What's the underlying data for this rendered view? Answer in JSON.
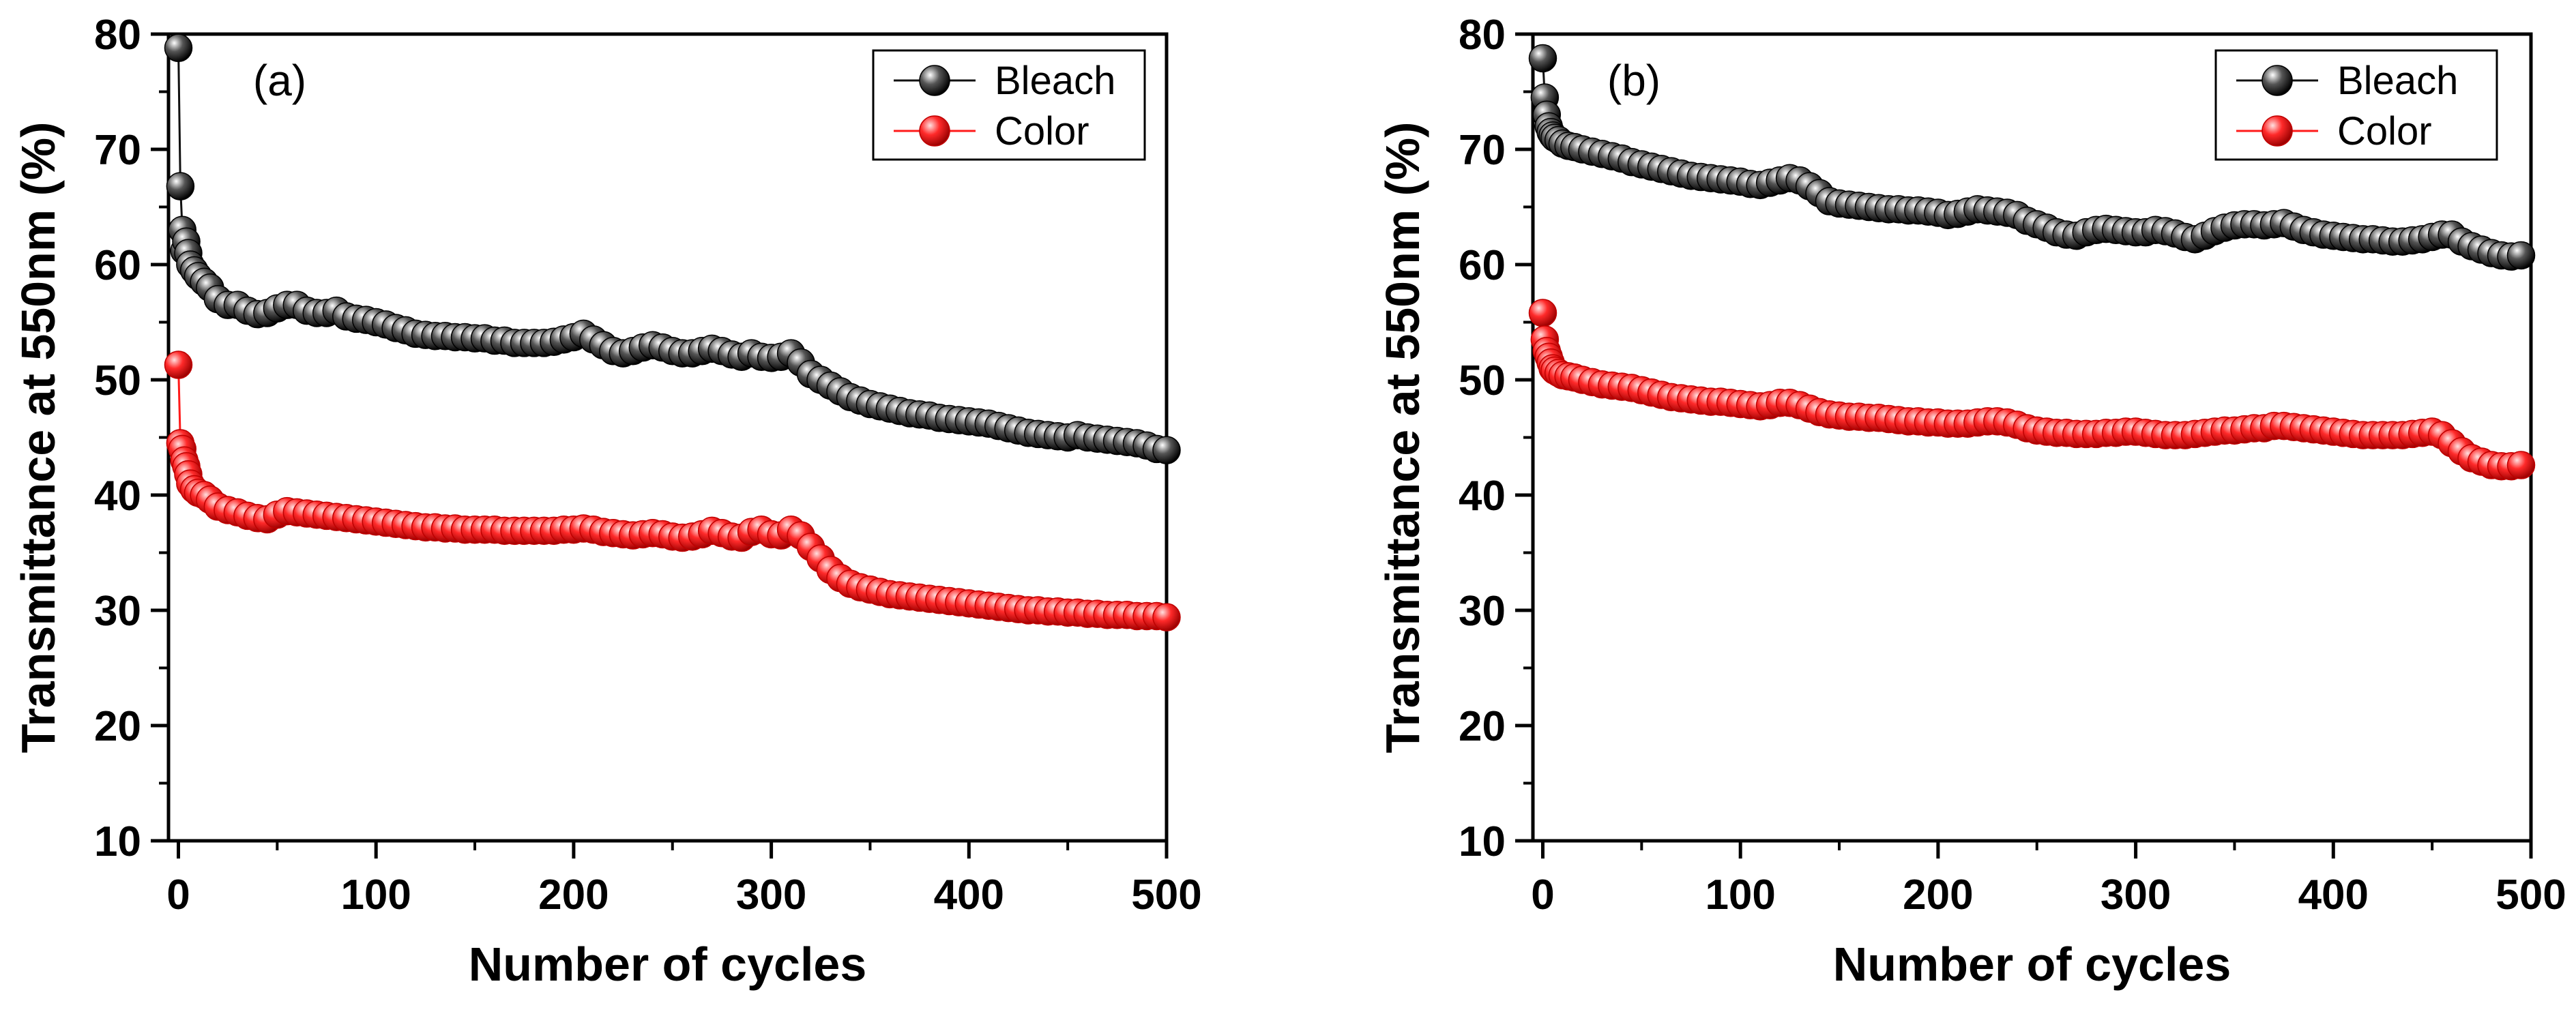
{
  "chart_data": [
    {
      "type": "scatter",
      "panel_label": "(a)",
      "xlabel": "Number of cycles",
      "ylabel": "Transmittance at 550nm (%)",
      "xlim": [
        -5,
        500
      ],
      "ylim": [
        10,
        80
      ],
      "xticks": [
        0,
        100,
        200,
        300,
        400,
        500
      ],
      "yticks": [
        10,
        20,
        30,
        40,
        50,
        60,
        70,
        80
      ],
      "legend_position": "top-right",
      "series": [
        {
          "name": "Bleach",
          "color": "#111111",
          "x": [
            0,
            1,
            2,
            3,
            4,
            5,
            6,
            8,
            10,
            13,
            16,
            20,
            25,
            30,
            35,
            40,
            45,
            50,
            55,
            60,
            65,
            70,
            75,
            80,
            85,
            90,
            95,
            100,
            105,
            110,
            115,
            120,
            125,
            130,
            135,
            140,
            145,
            150,
            155,
            160,
            165,
            170,
            175,
            180,
            185,
            190,
            195,
            200,
            205,
            210,
            215,
            220,
            225,
            230,
            235,
            240,
            245,
            250,
            255,
            260,
            265,
            270,
            275,
            280,
            285,
            290,
            295,
            300,
            305,
            310,
            315,
            320,
            325,
            330,
            335,
            340,
            345,
            350,
            355,
            360,
            365,
            370,
            375,
            380,
            385,
            390,
            395,
            400,
            405,
            410,
            415,
            420,
            425,
            430,
            435,
            440,
            445,
            450,
            455,
            460,
            465,
            470,
            475,
            480,
            485,
            490,
            495,
            500
          ],
          "y": [
            78.8,
            66.8,
            63.0,
            61.2,
            62.0,
            61.0,
            60.0,
            59.5,
            59.0,
            58.5,
            58.0,
            57.0,
            56.5,
            56.5,
            56.0,
            55.7,
            55.8,
            56.2,
            56.5,
            56.5,
            56.0,
            55.8,
            55.8,
            56.0,
            55.5,
            55.3,
            55.2,
            55.0,
            54.8,
            54.5,
            54.3,
            54.0,
            53.9,
            53.8,
            53.8,
            53.7,
            53.7,
            53.6,
            53.6,
            53.4,
            53.4,
            53.2,
            53.2,
            53.2,
            53.2,
            53.3,
            53.5,
            53.7,
            54.0,
            53.5,
            53.0,
            52.5,
            52.3,
            52.5,
            52.8,
            53.0,
            52.8,
            52.5,
            52.3,
            52.3,
            52.5,
            52.7,
            52.5,
            52.2,
            52.0,
            52.3,
            52.0,
            51.9,
            52.0,
            52.3,
            51.5,
            50.5,
            50.0,
            49.5,
            49.0,
            48.5,
            48.2,
            47.9,
            47.7,
            47.5,
            47.3,
            47.1,
            47.0,
            46.9,
            46.7,
            46.6,
            46.5,
            46.4,
            46.3,
            46.2,
            46.0,
            45.8,
            45.6,
            45.4,
            45.3,
            45.2,
            45.1,
            45.0,
            45.2,
            45.0,
            44.9,
            44.8,
            44.7,
            44.6,
            44.5,
            44.3,
            44.0,
            43.9
          ]
        },
        {
          "name": "Color",
          "color": "#ff1a1a",
          "x": [
            0,
            1,
            2,
            3,
            4,
            5,
            6,
            8,
            10,
            13,
            16,
            20,
            25,
            30,
            35,
            40,
            45,
            50,
            55,
            60,
            65,
            70,
            75,
            80,
            85,
            90,
            95,
            100,
            105,
            110,
            115,
            120,
            125,
            130,
            135,
            140,
            145,
            150,
            155,
            160,
            165,
            170,
            175,
            180,
            185,
            190,
            195,
            200,
            205,
            210,
            215,
            220,
            225,
            230,
            235,
            240,
            245,
            250,
            255,
            260,
            265,
            270,
            275,
            280,
            285,
            290,
            295,
            300,
            305,
            310,
            315,
            320,
            325,
            330,
            335,
            340,
            345,
            350,
            355,
            360,
            365,
            370,
            375,
            380,
            385,
            390,
            395,
            400,
            405,
            410,
            415,
            420,
            425,
            430,
            435,
            440,
            445,
            450,
            455,
            460,
            465,
            470,
            475,
            480,
            485,
            490,
            495,
            500
          ],
          "y": [
            51.3,
            44.5,
            44.0,
            43.0,
            42.5,
            41.8,
            41.0,
            40.5,
            40.2,
            40.0,
            39.6,
            39.0,
            38.7,
            38.5,
            38.2,
            38.0,
            37.9,
            38.3,
            38.6,
            38.5,
            38.4,
            38.3,
            38.2,
            38.1,
            38.0,
            37.9,
            37.8,
            37.7,
            37.6,
            37.5,
            37.4,
            37.3,
            37.2,
            37.2,
            37.1,
            37.1,
            37.0,
            37.0,
            37.0,
            37.0,
            36.9,
            36.9,
            36.9,
            36.9,
            36.9,
            36.9,
            37.0,
            37.0,
            37.1,
            37.0,
            36.8,
            36.7,
            36.6,
            36.5,
            36.6,
            36.7,
            36.6,
            36.4,
            36.3,
            36.4,
            36.6,
            36.9,
            36.7,
            36.4,
            36.3,
            36.8,
            37.0,
            36.6,
            36.5,
            37.0,
            36.5,
            35.5,
            34.5,
            33.5,
            32.8,
            32.3,
            32.0,
            31.8,
            31.6,
            31.4,
            31.3,
            31.2,
            31.1,
            31.0,
            30.9,
            30.8,
            30.7,
            30.6,
            30.5,
            30.4,
            30.3,
            30.2,
            30.1,
            30.0,
            30.0,
            29.9,
            29.9,
            29.8,
            29.8,
            29.7,
            29.7,
            29.6,
            29.6,
            29.6,
            29.5,
            29.5,
            29.5,
            29.4
          ]
        }
      ]
    },
    {
      "type": "scatter",
      "panel_label": "(b)",
      "xlabel": "Number of cycles",
      "ylabel": "Transmittance at 550nm (%)",
      "xlim": [
        -5,
        500
      ],
      "ylim": [
        10,
        80
      ],
      "xticks": [
        0,
        100,
        200,
        300,
        400,
        500
      ],
      "yticks": [
        10,
        20,
        30,
        40,
        50,
        60,
        70,
        80
      ],
      "legend_position": "top-right",
      "series": [
        {
          "name": "Bleach",
          "color": "#111111",
          "x": [
            0,
            1,
            2,
            3,
            4,
            5,
            6,
            8,
            10,
            13,
            16,
            20,
            25,
            30,
            35,
            40,
            45,
            50,
            55,
            60,
            65,
            70,
            75,
            80,
            85,
            90,
            95,
            100,
            105,
            110,
            115,
            120,
            125,
            130,
            135,
            140,
            145,
            150,
            155,
            160,
            165,
            170,
            175,
            180,
            185,
            190,
            195,
            200,
            205,
            210,
            215,
            220,
            225,
            230,
            235,
            240,
            245,
            250,
            255,
            260,
            265,
            270,
            275,
            280,
            285,
            290,
            295,
            300,
            305,
            310,
            315,
            320,
            325,
            330,
            335,
            340,
            345,
            350,
            355,
            360,
            365,
            370,
            375,
            380,
            385,
            390,
            395,
            400,
            405,
            410,
            415,
            420,
            425,
            430,
            435,
            440,
            445,
            450,
            455,
            460,
            465,
            470,
            475,
            480,
            485,
            490,
            495
          ],
          "y": [
            77.9,
            74.5,
            73.0,
            72.0,
            71.5,
            71.2,
            71.0,
            70.8,
            70.5,
            70.3,
            70.2,
            70.0,
            69.8,
            69.6,
            69.4,
            69.2,
            68.9,
            68.7,
            68.5,
            68.3,
            68.1,
            67.9,
            67.7,
            67.6,
            67.5,
            67.4,
            67.3,
            67.2,
            67.0,
            66.9,
            67.1,
            67.3,
            67.5,
            67.3,
            66.8,
            66.2,
            65.5,
            65.3,
            65.2,
            65.1,
            65.0,
            64.9,
            64.8,
            64.8,
            64.7,
            64.7,
            64.6,
            64.5,
            64.3,
            64.4,
            64.6,
            64.8,
            64.7,
            64.6,
            64.5,
            64.3,
            63.8,
            63.5,
            63.2,
            62.8,
            62.6,
            62.5,
            62.8,
            63.0,
            63.1,
            63.0,
            62.9,
            62.8,
            62.8,
            63.0,
            62.9,
            62.7,
            62.4,
            62.2,
            62.5,
            62.9,
            63.2,
            63.4,
            63.5,
            63.5,
            63.4,
            63.5,
            63.6,
            63.3,
            63.0,
            62.8,
            62.6,
            62.5,
            62.4,
            62.3,
            62.2,
            62.2,
            62.1,
            62.0,
            62.0,
            62.1,
            62.2,
            62.4,
            62.6,
            62.6,
            62.0,
            61.6,
            61.3,
            61.0,
            60.8,
            60.7,
            60.8
          ]
        },
        {
          "name": "Color",
          "color": "#ff1a1a",
          "x": [
            0,
            1,
            2,
            3,
            4,
            5,
            6,
            8,
            10,
            13,
            16,
            20,
            25,
            30,
            35,
            40,
            45,
            50,
            55,
            60,
            65,
            70,
            75,
            80,
            85,
            90,
            95,
            100,
            105,
            110,
            115,
            120,
            125,
            130,
            135,
            140,
            145,
            150,
            155,
            160,
            165,
            170,
            175,
            180,
            185,
            190,
            195,
            200,
            205,
            210,
            215,
            220,
            225,
            230,
            235,
            240,
            245,
            250,
            255,
            260,
            265,
            270,
            275,
            280,
            285,
            290,
            295,
            300,
            305,
            310,
            315,
            320,
            325,
            330,
            335,
            340,
            345,
            350,
            355,
            360,
            365,
            370,
            375,
            380,
            385,
            390,
            395,
            400,
            405,
            410,
            415,
            420,
            425,
            430,
            435,
            440,
            445,
            450,
            455,
            460,
            465,
            470,
            475,
            480,
            485,
            490,
            495
          ],
          "y": [
            55.8,
            53.5,
            52.5,
            52.0,
            51.5,
            51.0,
            50.8,
            50.6,
            50.4,
            50.3,
            50.2,
            50.0,
            49.8,
            49.6,
            49.5,
            49.4,
            49.3,
            49.1,
            48.9,
            48.7,
            48.5,
            48.4,
            48.3,
            48.2,
            48.1,
            48.1,
            48.0,
            47.9,
            47.8,
            47.7,
            47.8,
            48.0,
            48.0,
            47.8,
            47.5,
            47.2,
            47.0,
            46.9,
            46.8,
            46.8,
            46.7,
            46.7,
            46.6,
            46.5,
            46.4,
            46.4,
            46.3,
            46.3,
            46.2,
            46.2,
            46.2,
            46.3,
            46.4,
            46.4,
            46.3,
            46.1,
            45.8,
            45.6,
            45.5,
            45.4,
            45.4,
            45.3,
            45.3,
            45.3,
            45.4,
            45.4,
            45.5,
            45.5,
            45.4,
            45.3,
            45.2,
            45.2,
            45.2,
            45.3,
            45.4,
            45.5,
            45.6,
            45.6,
            45.7,
            45.8,
            45.8,
            46.0,
            46.0,
            45.9,
            45.8,
            45.7,
            45.6,
            45.5,
            45.4,
            45.3,
            45.2,
            45.2,
            45.2,
            45.2,
            45.2,
            45.3,
            45.4,
            45.5,
            45.2,
            44.5,
            43.8,
            43.2,
            42.9,
            42.6,
            42.5,
            42.5,
            42.6
          ]
        }
      ]
    }
  ]
}
